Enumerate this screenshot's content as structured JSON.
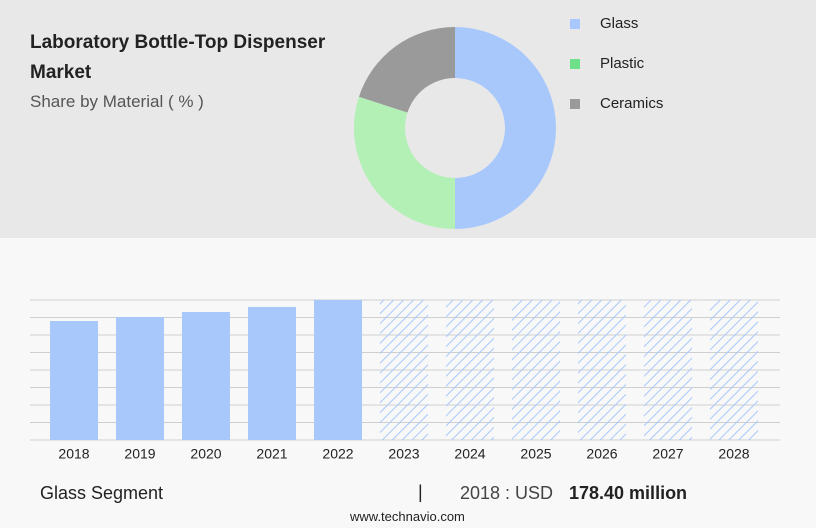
{
  "header": {
    "title": "Laboratory Bottle-Top Dispenser Market",
    "subtitle": "Share by Material ( % )"
  },
  "chart_data": [
    {
      "type": "pie",
      "categories": [
        "Glass",
        "Plastic",
        "Ceramics"
      ],
      "values": [
        50,
        30,
        20
      ],
      "colors": [
        "#a8c8fc",
        "#b3f0b5",
        "#9a9a9a"
      ],
      "legend_colors": [
        "#a8c8fc",
        "#6ee08a",
        "#9a9a9a"
      ]
    },
    {
      "type": "bar",
      "categories": [
        "2018",
        "2019",
        "2020",
        "2021",
        "2022",
        "2023",
        "2024",
        "2025",
        "2026",
        "2027",
        "2028"
      ],
      "values": [
        178.4,
        184.4,
        191.9,
        199.5,
        209.9,
        null,
        null,
        null,
        null,
        null,
        null
      ],
      "color": "#a8c8fc",
      "ylim": [
        0,
        209.9
      ],
      "grid": true
    }
  ],
  "footer": {
    "segment": "Glass Segment",
    "separator": "|",
    "year_label": "2018 : USD",
    "value_label": "178.40 million",
    "source": "www.technavio.com"
  }
}
